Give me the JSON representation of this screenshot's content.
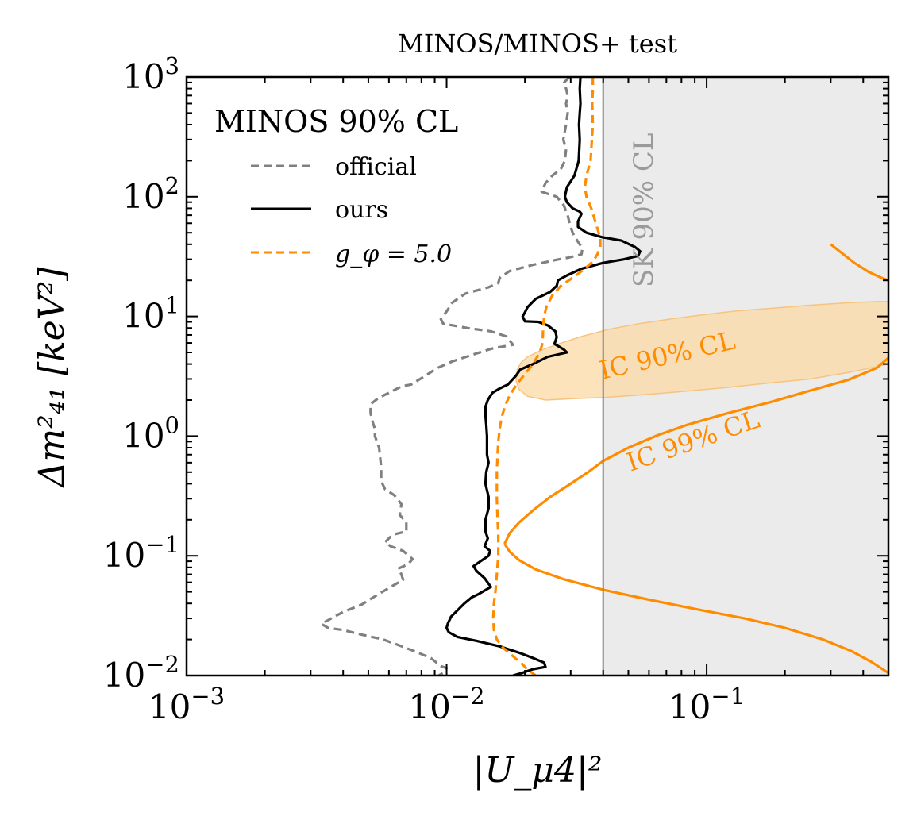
{
  "chart_data": {
    "type": "line",
    "title": "MINOS/MINOS+ test",
    "xlabel": "|U_μ4|²",
    "ylabel": "Δm²₄₁ [keV²]",
    "x_scale": "log",
    "y_scale": "log",
    "xlim": [
      0.001,
      0.5
    ],
    "ylim": [
      0.01,
      1000
    ],
    "x_ticks": [
      {
        "base": "10",
        "exp": "−3",
        "value": 0.001
      },
      {
        "base": "10",
        "exp": "−2",
        "value": 0.01
      },
      {
        "base": "10",
        "exp": "−1",
        "value": 0.1
      }
    ],
    "y_ticks": [
      {
        "base": "10",
        "exp": "−2",
        "value": 0.01
      },
      {
        "base": "10",
        "exp": "−1",
        "value": 0.1
      },
      {
        "base": "10",
        "exp": "0",
        "value": 1
      },
      {
        "base": "10",
        "exp": "1",
        "value": 10
      },
      {
        "base": "10",
        "exp": "2",
        "value": 100
      },
      {
        "base": "10",
        "exp": "3",
        "value": 1000
      }
    ],
    "legend": {
      "title": "MINOS 90% CL",
      "placement": "top-left",
      "entries": [
        "official",
        "ours",
        "g_φ = 5.0"
      ]
    },
    "colors": {
      "official": "#808080",
      "ours": "#000000",
      "g_phi": "#ff8c00",
      "ic_band_fill": "#fbd9a5",
      "sk_shade": "#ebebeb",
      "sk_line": "#808080"
    },
    "series": [
      {
        "name": "official",
        "style": "dashed",
        "points": [
          [
            0.0297,
            1000
          ],
          [
            0.0283,
            900
          ],
          [
            0.0288,
            800
          ],
          [
            0.0292,
            700
          ],
          [
            0.0288,
            600
          ],
          [
            0.0292,
            500
          ],
          [
            0.0288,
            400
          ],
          [
            0.0281,
            300
          ],
          [
            0.0288,
            250
          ],
          [
            0.0285,
            200
          ],
          [
            0.0275,
            170
          ],
          [
            0.0255,
            150
          ],
          [
            0.024,
            130
          ],
          [
            0.0232,
            110
          ],
          [
            0.0265,
            100
          ],
          [
            0.0282,
            85
          ],
          [
            0.0292,
            70
          ],
          [
            0.0297,
            60
          ],
          [
            0.0305,
            50
          ],
          [
            0.032,
            42
          ],
          [
            0.0333,
            37
          ],
          [
            0.033,
            33
          ],
          [
            0.0295,
            31
          ],
          [
            0.027,
            30
          ],
          [
            0.0215,
            27
          ],
          [
            0.0175,
            24
          ],
          [
            0.016,
            21
          ],
          [
            0.0158,
            19
          ],
          [
            0.0145,
            17.5
          ],
          [
            0.0118,
            15.5
          ],
          [
            0.0105,
            13
          ],
          [
            0.01,
            11
          ],
          [
            0.0095,
            9.5
          ],
          [
            0.0097,
            8.7
          ],
          [
            0.012,
            8.0
          ],
          [
            0.0148,
            7.5
          ],
          [
            0.017,
            6.8
          ],
          [
            0.018,
            5.8
          ],
          [
            0.015,
            5.4
          ],
          [
            0.013,
            4.9
          ],
          [
            0.0105,
            4.2
          ],
          [
            0.0092,
            3.7
          ],
          [
            0.0083,
            3.2
          ],
          [
            0.0077,
            2.9
          ],
          [
            0.0073,
            2.7
          ],
          [
            0.0067,
            2.6
          ],
          [
            0.006,
            2.3
          ],
          [
            0.0055,
            2.1
          ],
          [
            0.0051,
            1.85
          ],
          [
            0.0051,
            1.55
          ],
          [
            0.0052,
            1.3
          ],
          [
            0.0053,
            1.15
          ],
          [
            0.0053,
            1.0
          ],
          [
            0.0055,
            0.8
          ],
          [
            0.0056,
            0.55
          ],
          [
            0.0056,
            0.42
          ],
          [
            0.0058,
            0.36
          ],
          [
            0.0063,
            0.32
          ],
          [
            0.0067,
            0.27
          ],
          [
            0.0066,
            0.22
          ],
          [
            0.007,
            0.19
          ],
          [
            0.007,
            0.16
          ],
          [
            0.0062,
            0.15
          ],
          [
            0.0058,
            0.13
          ],
          [
            0.0061,
            0.12
          ],
          [
            0.0068,
            0.11
          ],
          [
            0.0074,
            0.094
          ],
          [
            0.0071,
            0.085
          ],
          [
            0.0065,
            0.078
          ],
          [
            0.0067,
            0.07
          ],
          [
            0.0068,
            0.063
          ],
          [
            0.0061,
            0.055
          ],
          [
            0.0054,
            0.047
          ],
          [
            0.0047,
            0.039
          ],
          [
            0.004,
            0.034
          ],
          [
            0.0036,
            0.03
          ],
          [
            0.0033,
            0.027
          ],
          [
            0.0035,
            0.025
          ],
          [
            0.004,
            0.024
          ],
          [
            0.0047,
            0.022
          ],
          [
            0.0057,
            0.02
          ],
          [
            0.0065,
            0.018
          ],
          [
            0.0075,
            0.016
          ],
          [
            0.0087,
            0.014
          ],
          [
            0.0095,
            0.012
          ],
          [
            0.01,
            0.0115
          ],
          [
            0.0097,
            0.0105
          ],
          [
            0.0093,
            0.01
          ]
        ]
      },
      {
        "name": "ours",
        "style": "solid",
        "points": [
          [
            0.0327,
            1000
          ],
          [
            0.0325,
            800
          ],
          [
            0.0327,
            600
          ],
          [
            0.0325,
            500
          ],
          [
            0.0323,
            400
          ],
          [
            0.0325,
            300
          ],
          [
            0.0322,
            200
          ],
          [
            0.031,
            150
          ],
          [
            0.029,
            120
          ],
          [
            0.0285,
            100
          ],
          [
            0.029,
            90
          ],
          [
            0.0305,
            80
          ],
          [
            0.0325,
            75
          ],
          [
            0.033,
            72
          ],
          [
            0.032,
            62
          ],
          [
            0.032,
            56
          ],
          [
            0.0345,
            50
          ],
          [
            0.0395,
            46
          ],
          [
            0.047,
            43
          ],
          [
            0.053,
            38
          ],
          [
            0.0555,
            35
          ],
          [
            0.0545,
            32
          ],
          [
            0.048,
            30
          ],
          [
            0.04,
            28
          ],
          [
            0.033,
            25
          ],
          [
            0.029,
            22
          ],
          [
            0.0268,
            20
          ],
          [
            0.0265,
            18
          ],
          [
            0.025,
            16
          ],
          [
            0.022,
            14
          ],
          [
            0.0205,
            12
          ],
          [
            0.02,
            10.8
          ],
          [
            0.0196,
            10
          ],
          [
            0.02,
            9.1
          ],
          [
            0.0225,
            9.0
          ],
          [
            0.0245,
            8.4
          ],
          [
            0.0262,
            7.5
          ],
          [
            0.0265,
            6.7
          ],
          [
            0.026,
            5.9
          ],
          [
            0.0282,
            5.3
          ],
          [
            0.029,
            5.0
          ],
          [
            0.0245,
            4.6
          ],
          [
            0.0215,
            4.0
          ],
          [
            0.0192,
            3.6
          ],
          [
            0.0185,
            3.2
          ],
          [
            0.0172,
            2.7
          ],
          [
            0.016,
            2.5
          ],
          [
            0.015,
            2.3
          ],
          [
            0.0144,
            2.0
          ],
          [
            0.0141,
            1.75
          ],
          [
            0.0141,
            1.5
          ],
          [
            0.0142,
            1.25
          ],
          [
            0.0143,
            1.0
          ],
          [
            0.0143,
            0.85
          ],
          [
            0.0143,
            0.7
          ],
          [
            0.0145,
            0.6
          ],
          [
            0.0142,
            0.5
          ],
          [
            0.0141,
            0.4
          ],
          [
            0.0145,
            0.31
          ],
          [
            0.0145,
            0.25
          ],
          [
            0.0141,
            0.2
          ],
          [
            0.0141,
            0.16
          ],
          [
            0.0144,
            0.14
          ],
          [
            0.014,
            0.12
          ],
          [
            0.0147,
            0.11
          ],
          [
            0.0145,
            0.1
          ],
          [
            0.0135,
            0.09
          ],
          [
            0.0127,
            0.082
          ],
          [
            0.013,
            0.075
          ],
          [
            0.014,
            0.065
          ],
          [
            0.0148,
            0.055
          ],
          [
            0.0133,
            0.048
          ],
          [
            0.0125,
            0.045
          ],
          [
            0.0117,
            0.04
          ],
          [
            0.011,
            0.035
          ],
          [
            0.0104,
            0.031
          ],
          [
            0.0101,
            0.027
          ],
          [
            0.01,
            0.025
          ],
          [
            0.0102,
            0.023
          ],
          [
            0.011,
            0.021
          ],
          [
            0.013,
            0.0195
          ],
          [
            0.016,
            0.0175
          ],
          [
            0.019,
            0.0155
          ],
          [
            0.0215,
            0.014
          ],
          [
            0.0237,
            0.0128
          ],
          [
            0.024,
            0.0118
          ],
          [
            0.0215,
            0.0113
          ],
          [
            0.0195,
            0.0105
          ],
          [
            0.018,
            0.01
          ]
        ]
      },
      {
        "name": "g_φ = 5.0",
        "style": "dashed",
        "points": [
          [
            0.0365,
            1000
          ],
          [
            0.0365,
            800
          ],
          [
            0.0363,
            600
          ],
          [
            0.0365,
            400
          ],
          [
            0.0362,
            300
          ],
          [
            0.0358,
            200
          ],
          [
            0.0345,
            150
          ],
          [
            0.034,
            120
          ],
          [
            0.0345,
            100
          ],
          [
            0.036,
            80
          ],
          [
            0.0375,
            60
          ],
          [
            0.039,
            45
          ],
          [
            0.039,
            38
          ],
          [
            0.038,
            33
          ],
          [
            0.037,
            30
          ],
          [
            0.036,
            28
          ],
          [
            0.034,
            25
          ],
          [
            0.0305,
            21
          ],
          [
            0.0275,
            18
          ],
          [
            0.0255,
            15
          ],
          [
            0.0242,
            12
          ],
          [
            0.0237,
            10
          ],
          [
            0.0235,
            8
          ],
          [
            0.0234,
            6
          ],
          [
            0.0228,
            5
          ],
          [
            0.0215,
            4.0
          ],
          [
            0.02,
            3.3
          ],
          [
            0.0186,
            2.7
          ],
          [
            0.0175,
            2.2
          ],
          [
            0.0168,
            1.8
          ],
          [
            0.0163,
            1.45
          ],
          [
            0.016,
            1.15
          ],
          [
            0.0158,
            0.9
          ],
          [
            0.0157,
            0.7
          ],
          [
            0.0156,
            0.5
          ],
          [
            0.0156,
            0.3
          ],
          [
            0.0157,
            0.2
          ],
          [
            0.0158,
            0.15
          ],
          [
            0.0158,
            0.1
          ],
          [
            0.0156,
            0.07
          ],
          [
            0.0154,
            0.05
          ],
          [
            0.0152,
            0.04
          ],
          [
            0.0151,
            0.03
          ],
          [
            0.0152,
            0.024
          ],
          [
            0.0156,
            0.02
          ],
          [
            0.0165,
            0.017
          ],
          [
            0.018,
            0.0145
          ],
          [
            0.0195,
            0.0125
          ],
          [
            0.0205,
            0.0112
          ],
          [
            0.0215,
            0.0104
          ],
          [
            0.022,
            0.01
          ]
        ]
      }
    ],
    "sk_region": {
      "label": "SK 90% CL",
      "x_min": 0.04
    },
    "ic_90_band": {
      "label": "IC 90% CL",
      "points": [
        [
          0.0185,
          2.9
        ],
        [
          0.0187,
          3.6
        ],
        [
          0.0193,
          4.1
        ],
        [
          0.0205,
          4.6
        ],
        [
          0.023,
          5.2
        ],
        [
          0.027,
          5.9
        ],
        [
          0.033,
          6.8
        ],
        [
          0.042,
          7.8
        ],
        [
          0.055,
          8.7
        ],
        [
          0.075,
          9.6
        ],
        [
          0.1,
          10.4
        ],
        [
          0.13,
          11.1
        ],
        [
          0.18,
          11.7
        ],
        [
          0.25,
          12.4
        ],
        [
          0.35,
          13.0
        ],
        [
          0.45,
          13.3
        ],
        [
          0.5,
          13.3
        ],
        [
          0.5,
          4.0
        ],
        [
          0.45,
          3.8
        ],
        [
          0.35,
          3.4
        ],
        [
          0.25,
          3.0
        ],
        [
          0.18,
          2.8
        ],
        [
          0.12,
          2.55
        ],
        [
          0.08,
          2.35
        ],
        [
          0.055,
          2.2
        ],
        [
          0.04,
          2.1
        ],
        [
          0.03,
          2.05
        ],
        [
          0.024,
          2.0
        ],
        [
          0.0205,
          2.15
        ],
        [
          0.019,
          2.45
        ],
        [
          0.0185,
          2.9
        ]
      ]
    },
    "ic_99_contour": {
      "label": "IC 99% CL",
      "segments": [
        [
          [
            0.0167,
            0.126
          ],
          [
            0.0175,
            0.155
          ],
          [
            0.019,
            0.19
          ],
          [
            0.0215,
            0.24
          ],
          [
            0.025,
            0.31
          ],
          [
            0.03,
            0.4
          ],
          [
            0.035,
            0.5
          ],
          [
            0.04,
            0.62
          ],
          [
            0.05,
            0.8
          ],
          [
            0.065,
            1.02
          ],
          [
            0.085,
            1.25
          ],
          [
            0.12,
            1.55
          ],
          [
            0.18,
            1.95
          ],
          [
            0.25,
            2.4
          ],
          [
            0.35,
            2.95
          ],
          [
            0.45,
            3.7
          ],
          [
            0.5,
            4.5
          ]
        ],
        [
          [
            0.0167,
            0.126
          ],
          [
            0.0175,
            0.108
          ],
          [
            0.019,
            0.092
          ],
          [
            0.022,
            0.077
          ],
          [
            0.028,
            0.064
          ],
          [
            0.04,
            0.052
          ],
          [
            0.06,
            0.043
          ],
          [
            0.09,
            0.036
          ],
          [
            0.14,
            0.03
          ],
          [
            0.2,
            0.025
          ],
          [
            0.28,
            0.02
          ],
          [
            0.36,
            0.016
          ],
          [
            0.43,
            0.013
          ],
          [
            0.5,
            0.0105
          ]
        ],
        [
          [
            0.3,
            40
          ],
          [
            0.33,
            34
          ],
          [
            0.37,
            28
          ],
          [
            0.42,
            23.5
          ],
          [
            0.47,
            21
          ],
          [
            0.5,
            20
          ]
        ]
      ]
    }
  }
}
